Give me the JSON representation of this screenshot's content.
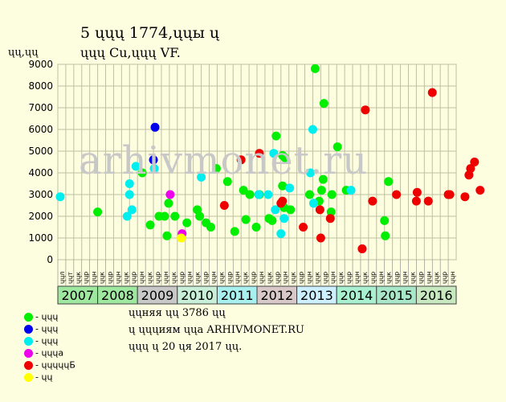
{
  "header": {
    "title_line1": "5 ųųų 1774,ųųы ų",
    "title_line2": "ųųų Cu,ųųų VF.",
    "y_unit": "ųų,ųų"
  },
  "watermark": "arhivmonet.ru",
  "legend": [
    {
      "label": "- ųųų",
      "color": "#00ee00",
      "icon": "green-dot"
    },
    {
      "label": "- ųųų",
      "color": "#0000ee",
      "icon": "blue-dot"
    },
    {
      "label": "- ųųų",
      "color": "#00eeee",
      "icon": "cyan-dot"
    },
    {
      "label": "- ųųųа",
      "color": "#ee00ee",
      "icon": "magenta-dot"
    },
    {
      "label": "- ųųųųųБ",
      "color": "#ee0000",
      "icon": "red-dot"
    },
    {
      "label": "- ųų",
      "color": "#ffff00",
      "icon": "yellow-dot"
    }
  ],
  "notes": [
    "ųųняя ųų 3786 ųų",
    "ų ųųųиям ųųа ARHIVMONET.RU",
    "ųųų ų 20 ųя 2017 ųų."
  ],
  "chart_data": {
    "type": "scatter",
    "ylim": [
      0,
      9000
    ],
    "y_ticks": [
      "0",
      "1000",
      "2000",
      "3000",
      "4000",
      "5000",
      "6000",
      "7000",
      "8000",
      "9000"
    ],
    "grid": true,
    "year_bands": [
      {
        "year": "2007",
        "color": "#9fe89f"
      },
      {
        "year": "2008",
        "color": "#9fe89f"
      },
      {
        "year": "2009",
        "color": "#c8c8c8"
      },
      {
        "year": "2010",
        "color": "#c8f0d8"
      },
      {
        "year": "2011",
        "color": "#a8f0f0"
      },
      {
        "year": "2012",
        "color": "#d8c8c8"
      },
      {
        "year": "2013",
        "color": "#ccf0ff"
      },
      {
        "year": "2014",
        "color": "#a8f0d0"
      },
      {
        "year": "2015",
        "color": "#a8e8c8"
      },
      {
        "year": "2016",
        "color": "#c8e8c0"
      }
    ],
    "quarter_labels": [
      "ųųл",
      "ųųт",
      "ųųк",
      "ųųр",
      "ųųн",
      "ųųк",
      "ųųр",
      "ųųн",
      "ųųк",
      "ųųр",
      "ųųн",
      "ųųк",
      "ųųр",
      "ųųн",
      "ųųк",
      "ųųр",
      "ųųн",
      "ųųк",
      "ųųр",
      "ųųн",
      "ųųк",
      "ųųр",
      "ųųн",
      "ųųк",
      "ųųр",
      "ųųн",
      "ųųк",
      "ųųр",
      "ųųн",
      "ųųк",
      "ųųр",
      "ųųн",
      "ųųк",
      "ųųр",
      "ųųн",
      "ųųк",
      "ųųр",
      "ųųн",
      "ųųк",
      "ųųр",
      "ųųн",
      "ųųк",
      "ųųр",
      "ųųн",
      "ųųк",
      "ųųр",
      "ųųн",
      "ųųк",
      "ųųр",
      "ųųн"
    ],
    "series": [
      {
        "color": "#00ee00",
        "points": [
          [
            5.0,
            2200
          ],
          [
            10.6,
            4000
          ],
          [
            11.6,
            1600
          ],
          [
            12.7,
            2000
          ],
          [
            13.7,
            1100
          ],
          [
            13.9,
            2600
          ],
          [
            13.4,
            2000
          ],
          [
            14.7,
            2000
          ],
          [
            16.2,
            1700
          ],
          [
            17.5,
            2300
          ],
          [
            17.8,
            2000
          ],
          [
            18.6,
            1700
          ],
          [
            19.2,
            1500
          ],
          [
            19.9,
            4200
          ],
          [
            21.3,
            3600
          ],
          [
            22.2,
            1300
          ],
          [
            23.6,
            1850
          ],
          [
            23.3,
            3200
          ],
          [
            24.1,
            3000
          ],
          [
            24.9,
            1500
          ],
          [
            25.3,
            3000
          ],
          [
            26.5,
            1900
          ],
          [
            26.9,
            1800
          ],
          [
            27.4,
            5700
          ],
          [
            28.2,
            3400
          ],
          [
            28.4,
            2400
          ],
          [
            28.5,
            4700
          ],
          [
            28.2,
            4800
          ],
          [
            29.2,
            2300
          ],
          [
            31.6,
            3000
          ],
          [
            32.3,
            8800
          ],
          [
            32.8,
            2700
          ],
          [
            33.1,
            3200
          ],
          [
            33.3,
            3700
          ],
          [
            33.4,
            7200
          ],
          [
            34.3,
            2200
          ],
          [
            34.4,
            3000
          ],
          [
            35.1,
            5200
          ],
          [
            36.2,
            3200
          ],
          [
            41.1,
            1100
          ],
          [
            41.0,
            1800
          ],
          [
            41.5,
            3600
          ]
        ]
      },
      {
        "color": "#0000ee",
        "points": [
          [
            12.2,
            6100
          ],
          [
            12.0,
            4600
          ]
        ]
      },
      {
        "color": "#00eeee",
        "points": [
          [
            0.3,
            2900
          ],
          [
            8.7,
            2000
          ],
          [
            9.0,
            3000
          ],
          [
            9.0,
            3500
          ],
          [
            9.3,
            2300
          ],
          [
            9.8,
            4300
          ],
          [
            12.1,
            4200
          ],
          [
            18.0,
            3800
          ],
          [
            25.2,
            3000
          ],
          [
            26.4,
            3000
          ],
          [
            27.1,
            4900
          ],
          [
            27.3,
            2300
          ],
          [
            28.0,
            1200
          ],
          [
            28.4,
            1900
          ],
          [
            29.1,
            3300
          ],
          [
            31.7,
            4000
          ],
          [
            32.0,
            6000
          ],
          [
            32.1,
            2600
          ],
          [
            36.8,
            3200
          ]
        ]
      },
      {
        "color": "#ee00ee",
        "points": [
          [
            14.1,
            3000
          ],
          [
            15.6,
            1200
          ],
          [
            38.2,
            500
          ]
        ]
      },
      {
        "color": "#ee0000",
        "points": [
          [
            20.9,
            2500
          ],
          [
            23.0,
            4600
          ],
          [
            25.3,
            4900
          ],
          [
            28.0,
            2600
          ],
          [
            28.2,
            2700
          ],
          [
            30.8,
            1500
          ],
          [
            32.9,
            2300
          ],
          [
            33.0,
            1000
          ],
          [
            34.2,
            1900
          ],
          [
            38.6,
            6900
          ],
          [
            38.2,
            500
          ],
          [
            39.5,
            2700
          ],
          [
            42.5,
            3000
          ],
          [
            45.1,
            3100
          ],
          [
            45.0,
            2700
          ],
          [
            46.5,
            2700
          ],
          [
            47.0,
            7700
          ],
          [
            49.0,
            3000
          ],
          [
            49.2,
            3000
          ],
          [
            51.1,
            2900
          ],
          [
            51.6,
            3900
          ],
          [
            51.8,
            4200
          ],
          [
            52.3,
            4500
          ],
          [
            53.0,
            3200
          ]
        ]
      },
      {
        "color": "#ffff00",
        "points": [
          [
            15.5,
            1000
          ]
        ]
      }
    ]
  }
}
